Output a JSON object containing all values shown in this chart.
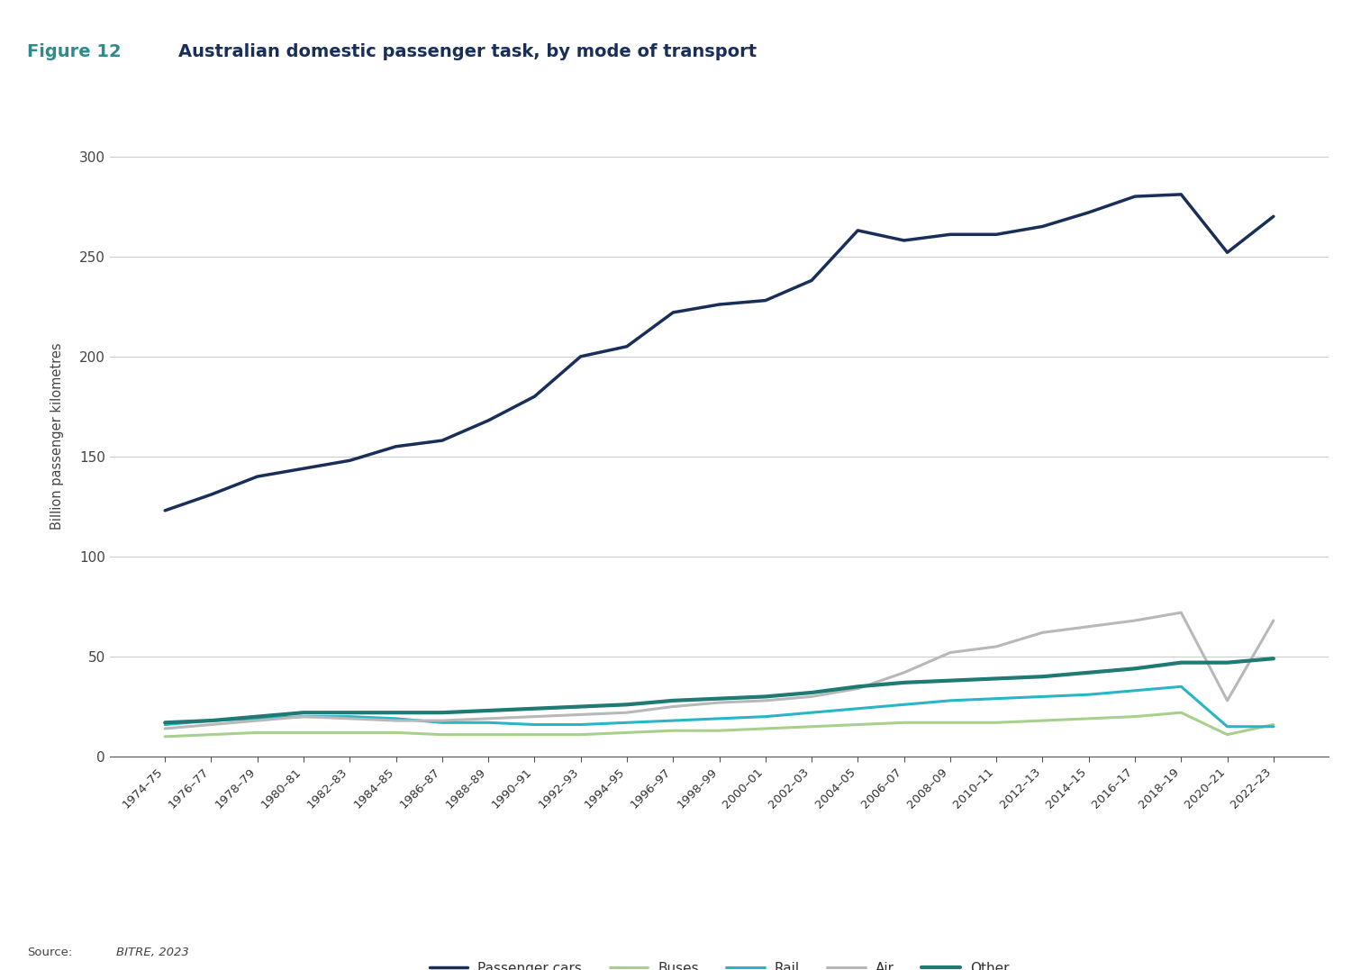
{
  "title_figure": "Figure 12",
  "title_main": "Australian domestic passenger task, by mode of transport",
  "ylabel": "Billion passenger kilometres",
  "source_label": "Source:",
  "source_value": "BITRE, 2023",
  "figure_color": "#2e8b8b",
  "title_color": "#1a2e5a",
  "background_color": "#ffffff",
  "x_labels": [
    "1974–75",
    "1976–77",
    "1978–79",
    "1980–81",
    "1982–83",
    "1984–85",
    "1986–87",
    "1988–89",
    "1990–91",
    "1992–93",
    "1994–95",
    "1996–97",
    "1998–99",
    "2000–01",
    "2002–03",
    "2004–05",
    "2006–07",
    "2008–09",
    "2010–11",
    "2012–13",
    "2014–15",
    "2016–17",
    "2018–19",
    "2020–21",
    "2022–23"
  ],
  "series": {
    "Passenger cars": {
      "color": "#1a2e5a",
      "linewidth": 2.5,
      "values": [
        123,
        131,
        140,
        144,
        148,
        155,
        158,
        168,
        180,
        200,
        205,
        222,
        226,
        228,
        238,
        263,
        258,
        261,
        261,
        265,
        272,
        280,
        281,
        252,
        270
      ]
    },
    "Buses": {
      "color": "#a8d08d",
      "linewidth": 2.2,
      "values": [
        10,
        11,
        12,
        12,
        12,
        12,
        11,
        11,
        11,
        11,
        12,
        13,
        13,
        14,
        15,
        16,
        17,
        17,
        17,
        18,
        19,
        20,
        22,
        11,
        16
      ]
    },
    "Rail": {
      "color": "#29b5c8",
      "linewidth": 2.2,
      "values": [
        16,
        18,
        19,
        20,
        20,
        19,
        17,
        17,
        16,
        16,
        17,
        18,
        19,
        20,
        22,
        24,
        26,
        28,
        29,
        30,
        31,
        33,
        35,
        15,
        15
      ]
    },
    "Air": {
      "color": "#b8b8b8",
      "linewidth": 2.2,
      "values": [
        14,
        16,
        18,
        20,
        19,
        18,
        18,
        19,
        20,
        21,
        22,
        25,
        27,
        28,
        30,
        34,
        42,
        52,
        55,
        62,
        65,
        68,
        72,
        28,
        68
      ]
    },
    "Other": {
      "color": "#1e7a73",
      "linewidth": 3.0,
      "values": [
        17,
        18,
        20,
        22,
        22,
        22,
        22,
        23,
        24,
        25,
        26,
        28,
        29,
        30,
        32,
        35,
        37,
        38,
        39,
        40,
        42,
        44,
        47,
        47,
        49
      ]
    }
  },
  "ylim": [
    0,
    320
  ],
  "yticks": [
    0,
    50,
    100,
    150,
    200,
    250,
    300
  ],
  "grid_color": "#cccccc",
  "legend_labels": [
    "Passenger cars",
    "Buses",
    "Rail",
    "Air",
    "Other"
  ]
}
